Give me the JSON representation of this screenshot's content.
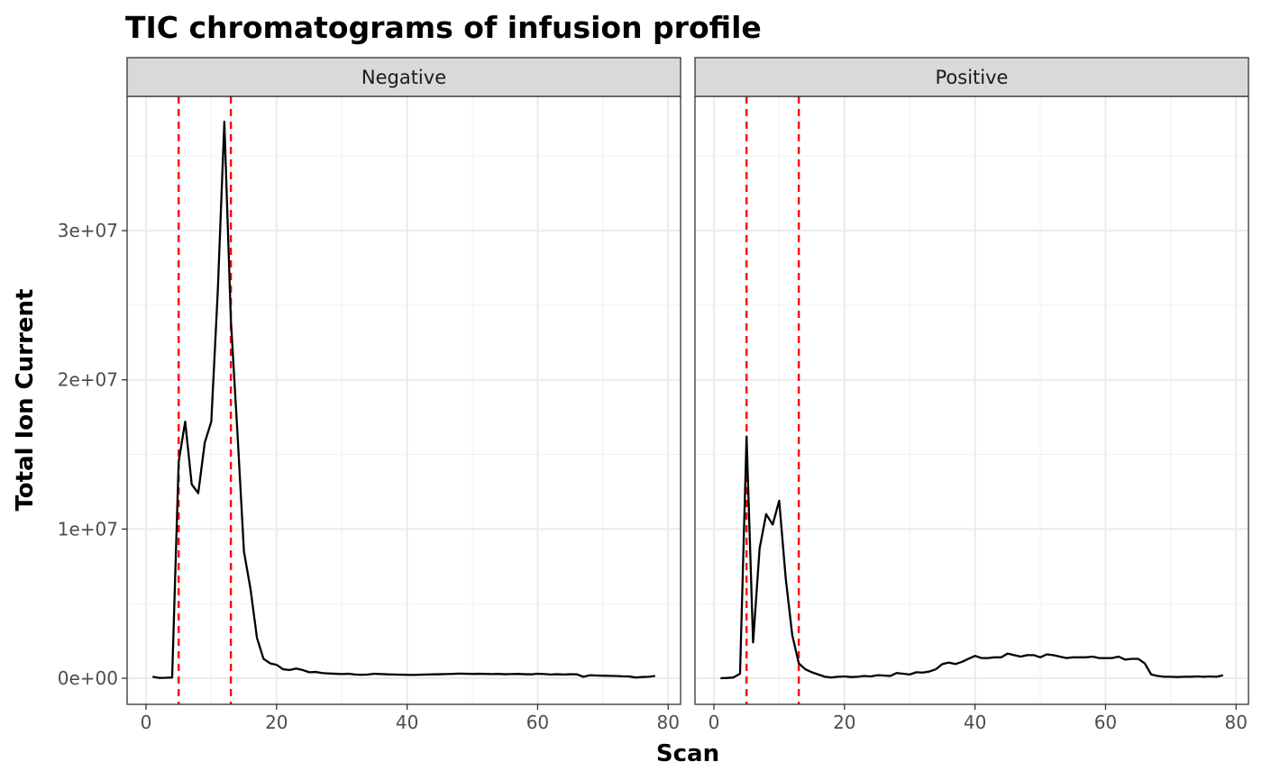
{
  "chart_data": {
    "type": "line",
    "title": "TIC chromatograms of infusion profile",
    "xlabel": "Scan",
    "ylabel": "Total Ion Current",
    "xlim": [
      -2.9,
      81.9
    ],
    "ylim": [
      -1750000,
      39000000
    ],
    "x_ticks": [
      0,
      20,
      40,
      60,
      80
    ],
    "x_tick_labels": [
      "0",
      "20",
      "40",
      "60",
      "80"
    ],
    "y_ticks": [
      0,
      10000000,
      20000000,
      30000000
    ],
    "y_tick_labels": [
      "0e+00",
      "1e+07",
      "2e+07",
      "3e+07"
    ],
    "grid": true,
    "vlines": [
      5,
      13
    ],
    "colors": {
      "series": "#000000",
      "vline": "#ff0000",
      "strip": "#d9d9d9"
    },
    "panels": [
      {
        "name": "Negative",
        "x": [
          1,
          2,
          3,
          4,
          5,
          6,
          7,
          8,
          9,
          10,
          11,
          12,
          13,
          14,
          15,
          16,
          17,
          18,
          19,
          20,
          21,
          22,
          23,
          24,
          25,
          26,
          27,
          28,
          29,
          30,
          31,
          32,
          33,
          34,
          35,
          36,
          37,
          38,
          39,
          40,
          41,
          42,
          43,
          44,
          45,
          46,
          47,
          48,
          49,
          50,
          51,
          52,
          53,
          54,
          55,
          56,
          57,
          58,
          59,
          60,
          61,
          62,
          63,
          64,
          65,
          66,
          67,
          68,
          69,
          70,
          71,
          72,
          73,
          74,
          75,
          76,
          77,
          78
        ],
        "values": [
          100000,
          20000,
          30000,
          50000,
          14500000,
          17200000,
          13000000,
          12400000,
          15800000,
          17200000,
          26000000,
          37300000,
          24000000,
          16500000,
          8500000,
          6000000,
          2700000,
          1300000,
          1000000,
          900000,
          600000,
          550000,
          650000,
          550000,
          400000,
          420000,
          350000,
          320000,
          300000,
          280000,
          300000,
          250000,
          230000,
          250000,
          300000,
          280000,
          260000,
          250000,
          240000,
          230000,
          220000,
          240000,
          250000,
          260000,
          270000,
          280000,
          290000,
          310000,
          300000,
          290000,
          300000,
          290000,
          280000,
          290000,
          270000,
          280000,
          290000,
          270000,
          260000,
          300000,
          280000,
          250000,
          270000,
          250000,
          270000,
          260000,
          100000,
          200000,
          180000,
          170000,
          160000,
          150000,
          130000,
          120000,
          50000,
          80000,
          100000,
          150000
        ]
      },
      {
        "name": "Positive",
        "x": [
          1,
          2,
          3,
          4,
          5,
          6,
          7,
          8,
          9,
          10,
          11,
          12,
          13,
          14,
          15,
          16,
          17,
          18,
          19,
          20,
          21,
          22,
          23,
          24,
          25,
          26,
          27,
          28,
          29,
          30,
          31,
          32,
          33,
          34,
          35,
          36,
          37,
          38,
          39,
          40,
          41,
          42,
          43,
          44,
          45,
          46,
          47,
          48,
          49,
          50,
          51,
          52,
          53,
          54,
          55,
          56,
          57,
          58,
          59,
          60,
          61,
          62,
          63,
          64,
          65,
          66,
          67,
          68,
          69,
          70,
          71,
          72,
          73,
          74,
          75,
          76,
          77,
          78
        ],
        "values": [
          0,
          20000,
          50000,
          300000,
          16200000,
          2400000,
          8700000,
          11000000,
          10300000,
          11900000,
          6700000,
          2900000,
          1000000,
          600000,
          400000,
          250000,
          100000,
          50000,
          100000,
          120000,
          80000,
          100000,
          150000,
          120000,
          200000,
          180000,
          150000,
          350000,
          300000,
          250000,
          400000,
          380000,
          450000,
          600000,
          950000,
          1050000,
          950000,
          1100000,
          1300000,
          1500000,
          1350000,
          1350000,
          1400000,
          1400000,
          1650000,
          1550000,
          1450000,
          1550000,
          1550000,
          1400000,
          1600000,
          1550000,
          1450000,
          1350000,
          1400000,
          1400000,
          1400000,
          1450000,
          1350000,
          1350000,
          1350000,
          1450000,
          1250000,
          1300000,
          1300000,
          1000000,
          250000,
          150000,
          100000,
          100000,
          80000,
          100000,
          100000,
          120000,
          100000,
          120000,
          100000,
          200000
        ]
      }
    ]
  }
}
